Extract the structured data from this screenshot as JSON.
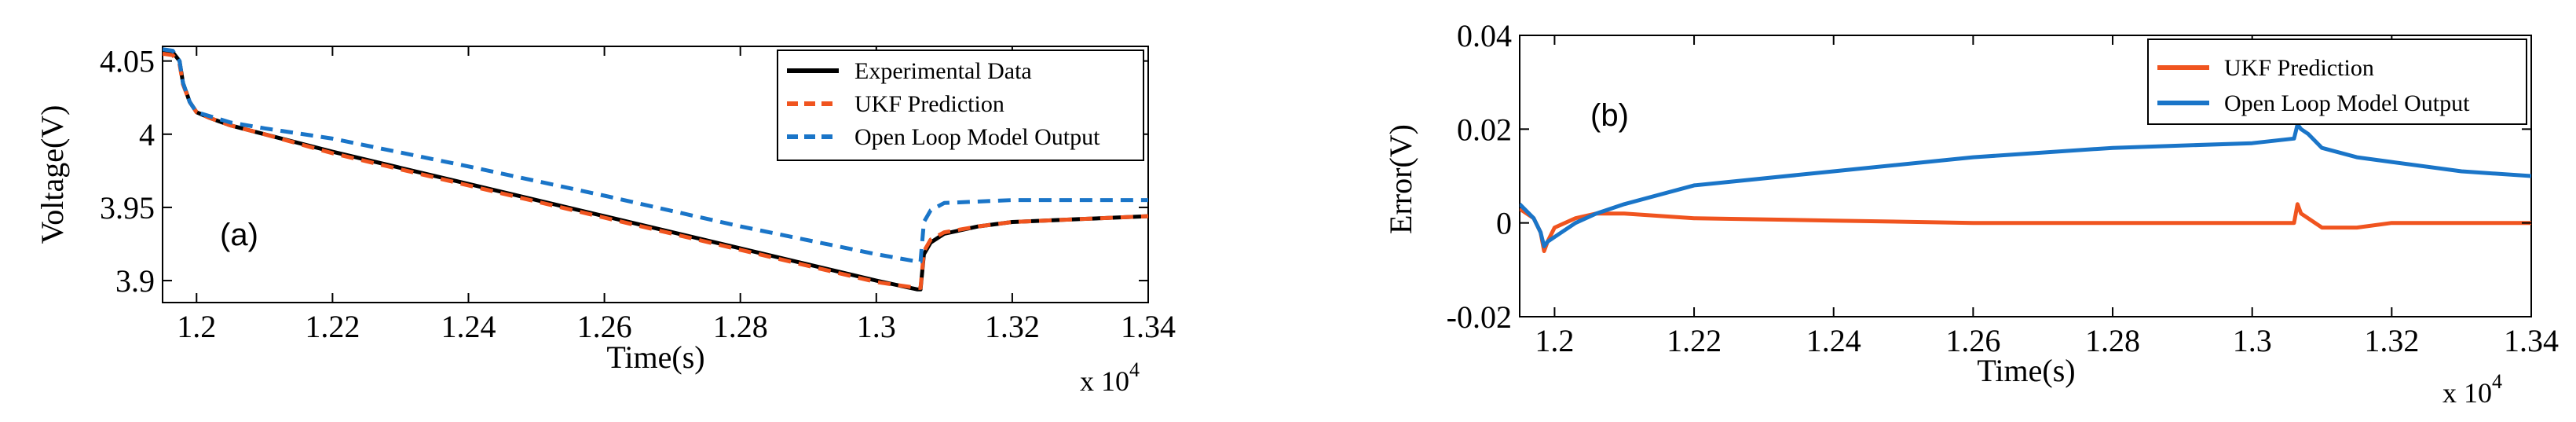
{
  "chart_data": [
    {
      "type": "line",
      "panel_label": "(a)",
      "title": "",
      "xlabel": "Time(s)",
      "ylabel": "Voltage(V)",
      "x_multiplier": "x 10",
      "x_multiplier_exp": "4",
      "xlim": [
        1.195,
        1.34
      ],
      "ylim": [
        3.885,
        4.06
      ],
      "xticks": [
        1.2,
        1.22,
        1.24,
        1.26,
        1.28,
        1.3,
        1.32,
        1.34
      ],
      "xtick_labels": [
        "1.2",
        "1.22",
        "1.24",
        "1.26",
        "1.28",
        "1.3",
        "1.32",
        "1.34"
      ],
      "yticks": [
        3.9,
        3.95,
        4.0,
        4.05
      ],
      "ytick_labels": [
        "3.9",
        "3.95",
        "4",
        "4.05"
      ],
      "grid": false,
      "legend_position": "top-right",
      "series": [
        {
          "name": "Experimental Data",
          "color": "#000000",
          "dash": "solid",
          "x": [
            1.195,
            1.1965,
            1.1975,
            1.198,
            1.199,
            1.2,
            1.202,
            1.205,
            1.21,
            1.22,
            1.24,
            1.26,
            1.28,
            1.3,
            1.306,
            1.3065,
            1.307,
            1.308,
            1.31,
            1.315,
            1.32,
            1.33,
            1.34
          ],
          "y": [
            4.057,
            4.056,
            4.05,
            4.035,
            4.022,
            4.015,
            4.011,
            4.006,
            4.0,
            3.988,
            3.966,
            3.944,
            3.922,
            3.9,
            3.894,
            3.894,
            3.918,
            3.926,
            3.932,
            3.937,
            3.94,
            3.942,
            3.944
          ]
        },
        {
          "name": "UKF Prediction",
          "color": "#f0541f",
          "dash": "dash",
          "x": [
            1.195,
            1.1965,
            1.1975,
            1.198,
            1.199,
            1.2,
            1.202,
            1.205,
            1.21,
            1.22,
            1.24,
            1.26,
            1.28,
            1.3,
            1.306,
            1.3065,
            1.307,
            1.308,
            1.31,
            1.315,
            1.32,
            1.33,
            1.34
          ],
          "y": [
            4.055,
            4.054,
            4.048,
            4.034,
            4.022,
            4.015,
            4.011,
            4.006,
            4.0,
            3.987,
            3.965,
            3.943,
            3.921,
            3.899,
            3.895,
            3.895,
            3.92,
            3.928,
            3.933,
            3.937,
            3.94,
            3.942,
            3.944
          ]
        },
        {
          "name": "Open Loop Model Output",
          "color": "#1a75c8",
          "dash": "dash",
          "x": [
            1.195,
            1.1965,
            1.1975,
            1.198,
            1.199,
            1.2,
            1.205,
            1.21,
            1.22,
            1.24,
            1.26,
            1.28,
            1.3,
            1.306,
            1.3065,
            1.307,
            1.308,
            1.31,
            1.32,
            1.34
          ],
          "y": [
            4.058,
            4.057,
            4.05,
            4.035,
            4.022,
            4.015,
            4.008,
            4.004,
            3.997,
            3.978,
            3.958,
            3.937,
            3.918,
            3.913,
            3.913,
            3.94,
            3.948,
            3.953,
            3.955,
            3.955
          ]
        }
      ]
    },
    {
      "type": "line",
      "panel_label": "(b)",
      "title": "",
      "xlabel": "Time(s)",
      "ylabel": "Error(V)",
      "x_multiplier": "x 10",
      "x_multiplier_exp": "4",
      "xlim": [
        1.195,
        1.34
      ],
      "ylim": [
        -0.02,
        0.04
      ],
      "xticks": [
        1.2,
        1.22,
        1.24,
        1.26,
        1.28,
        1.3,
        1.32,
        1.34
      ],
      "xtick_labels": [
        "1.2",
        "1.22",
        "1.24",
        "1.26",
        "1.28",
        "1.3",
        "1.32",
        "1.34"
      ],
      "yticks": [
        -0.02,
        0,
        0.02,
        0.04
      ],
      "ytick_labels": [
        "-0.02",
        "0",
        "0.02",
        "0.04"
      ],
      "grid": false,
      "legend_position": "top-right",
      "series": [
        {
          "name": "UKF Prediction",
          "color": "#f0541f",
          "dash": "solid",
          "x": [
            1.195,
            1.197,
            1.198,
            1.1985,
            1.199,
            1.2,
            1.203,
            1.206,
            1.21,
            1.22,
            1.24,
            1.26,
            1.28,
            1.3,
            1.306,
            1.3065,
            1.307,
            1.308,
            1.31,
            1.315,
            1.32,
            1.33,
            1.34
          ],
          "y": [
            0.003,
            0.001,
            -0.002,
            -0.006,
            -0.004,
            -0.001,
            0.001,
            0.002,
            0.002,
            0.001,
            0.0005,
            0.0,
            0.0,
            0.0,
            0.0,
            0.004,
            0.002,
            0.001,
            -0.001,
            -0.001,
            0.0,
            0.0,
            0.0
          ]
        },
        {
          "name": "Open Loop Model Output",
          "color": "#1a75c8",
          "dash": "solid",
          "x": [
            1.195,
            1.197,
            1.198,
            1.1985,
            1.199,
            1.2,
            1.203,
            1.206,
            1.21,
            1.22,
            1.24,
            1.26,
            1.28,
            1.3,
            1.306,
            1.3065,
            1.307,
            1.308,
            1.31,
            1.315,
            1.32,
            1.33,
            1.34
          ],
          "y": [
            0.004,
            0.001,
            -0.002,
            -0.005,
            -0.004,
            -0.003,
            0.0,
            0.002,
            0.004,
            0.008,
            0.011,
            0.014,
            0.016,
            0.017,
            0.018,
            0.021,
            0.02,
            0.019,
            0.016,
            0.014,
            0.013,
            0.011,
            0.01
          ]
        }
      ]
    }
  ]
}
